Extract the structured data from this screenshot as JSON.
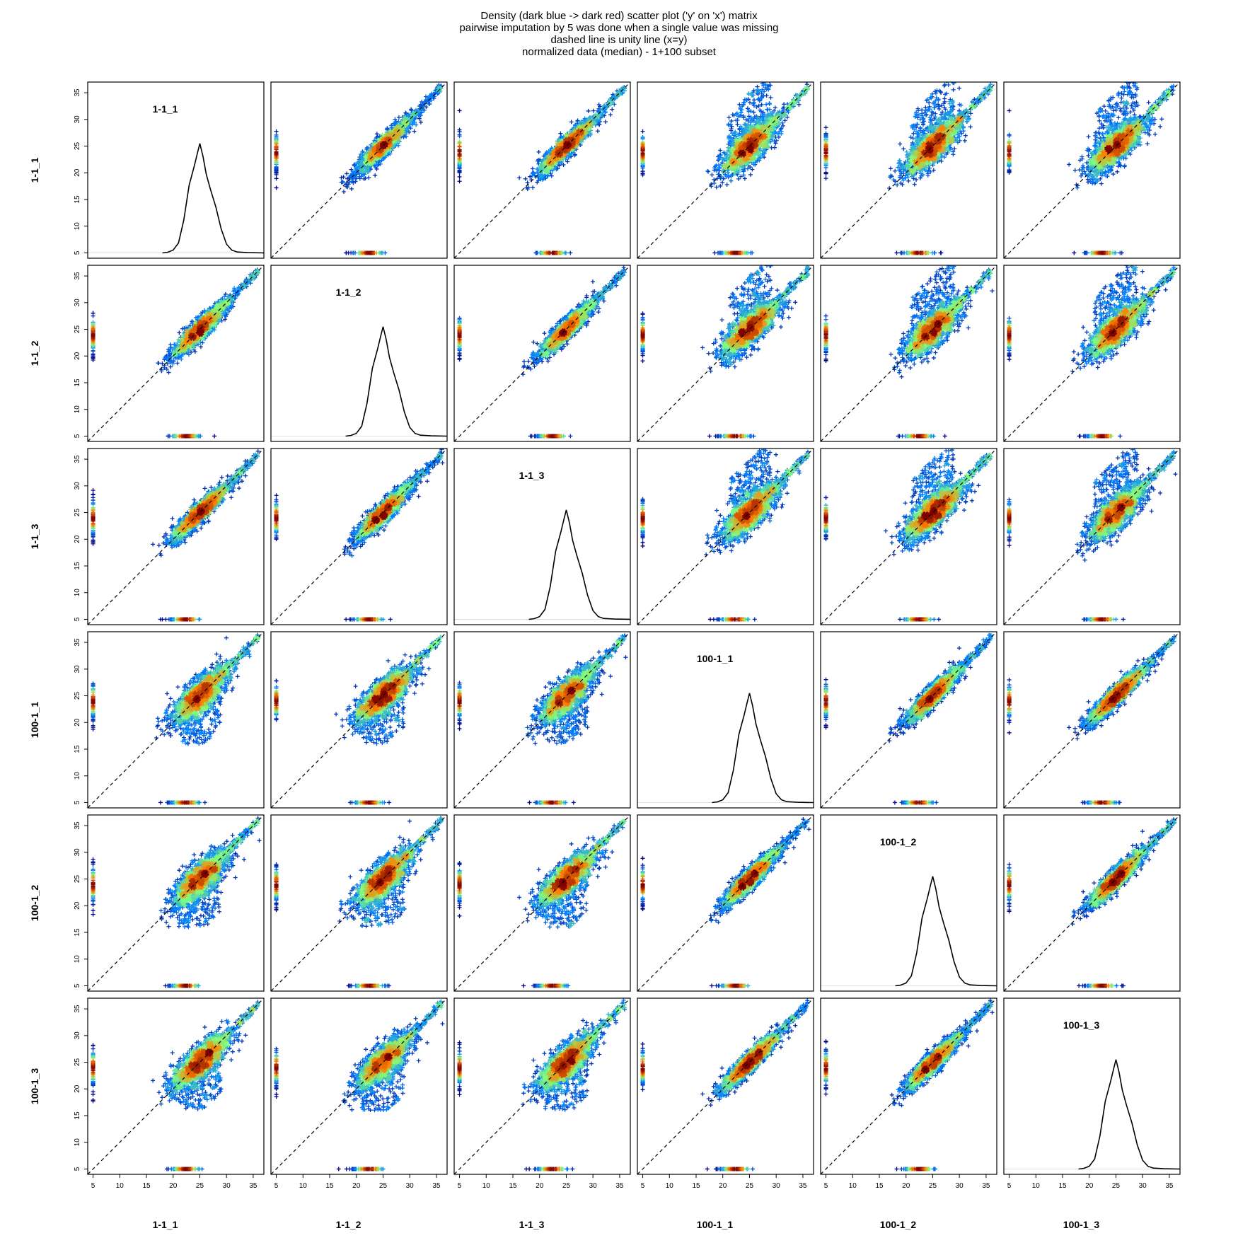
{
  "title_lines": [
    "Density (dark blue -> dark red) scatter plot ('y' on 'x') matrix",
    "pairwise imputation by 5 was done when a single value was missing",
    "dashed line is unity line (x=y)",
    "normalized data (median) - 1+100 subset"
  ],
  "colors": {
    "density_low": "#00007F",
    "density_mid_low": "#007FFF",
    "density_mid": "#7FFF7F",
    "density_mid_high": "#FF7F00",
    "density_high": "#7F0000",
    "unity_line": "#000000",
    "density_curve": "#000000",
    "frame": "#000000"
  },
  "chart_data": {
    "type": "scatter",
    "variables": [
      "1-1_1",
      "1-1_2",
      "1-1_3",
      "100-1_1",
      "100-1_2",
      "100-1_3"
    ],
    "xlim": [
      4,
      37
    ],
    "ylim": [
      4,
      37
    ],
    "ticks": [
      5,
      10,
      15,
      20,
      25,
      30,
      35
    ],
    "tick_labels": [
      "5",
      "10",
      "15",
      "20",
      "25",
      "30",
      "35"
    ],
    "imputed_value": 5,
    "point_marker": "+",
    "unity_line": "dashed x=y",
    "diagonal_panels": "kernel density curve of each variable",
    "distribution": {
      "center": 25,
      "spread": 2.6,
      "range": [
        18,
        36
      ]
    },
    "density_curve_points": [
      [
        18.0,
        0.0
      ],
      [
        19.0,
        0.006
      ],
      [
        20.0,
        0.025
      ],
      [
        21.0,
        0.09
      ],
      [
        22.0,
        0.3
      ],
      [
        23.0,
        0.62
      ],
      [
        24.0,
        0.8
      ],
      [
        24.6,
        0.92
      ],
      [
        25.0,
        1.0
      ],
      [
        25.6,
        0.88
      ],
      [
        26.2,
        0.72
      ],
      [
        27.0,
        0.58
      ],
      [
        28.0,
        0.42
      ],
      [
        29.0,
        0.22
      ],
      [
        30.0,
        0.08
      ],
      [
        31.0,
        0.025
      ],
      [
        32.0,
        0.008
      ],
      [
        34.0,
        0.002
      ],
      [
        37.0,
        0.0
      ]
    ],
    "off_diagonal_correlation": {
      "within_group": 0.92,
      "between_group": 0.78
    }
  }
}
